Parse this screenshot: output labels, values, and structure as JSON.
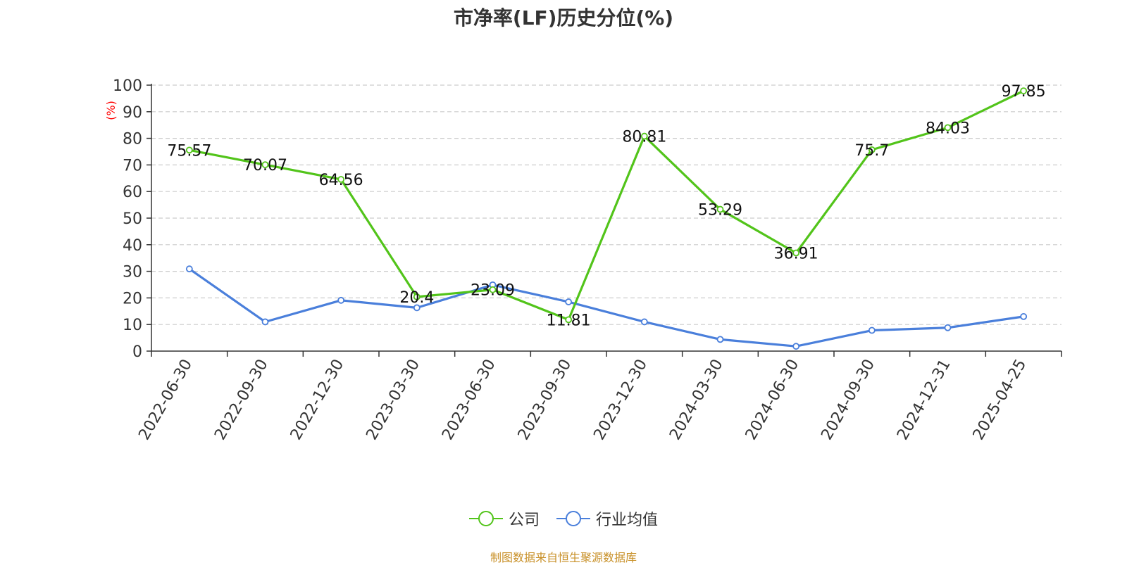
{
  "chart_data": {
    "type": "line",
    "title": "市净率(LF)历史分位(%)",
    "ylabel": "(%)",
    "xlabel": "",
    "ylim": [
      0,
      100
    ],
    "yticks": [
      0,
      10,
      20,
      30,
      40,
      50,
      60,
      70,
      80,
      90,
      100
    ],
    "grid": true,
    "legend_position": "bottom",
    "categories": [
      "2022-06-30",
      "2022-09-30",
      "2022-12-30",
      "2023-03-30",
      "2023-06-30",
      "2023-09-30",
      "2023-12-30",
      "2024-03-30",
      "2024-06-30",
      "2024-09-30",
      "2024-12-31",
      "2025-04-25"
    ],
    "series": [
      {
        "name": "公司",
        "color": "#52c41a",
        "values": [
          75.57,
          70.07,
          64.56,
          20.4,
          23.09,
          11.81,
          80.81,
          53.29,
          36.91,
          75.7,
          84.03,
          97.85
        ],
        "labels": [
          "75.57",
          "70.07",
          "64.56",
          "20.4",
          "23.09",
          "11.81",
          "80.81",
          "53.29",
          "36.91",
          "75.7",
          "84.03",
          "97.85"
        ]
      },
      {
        "name": "行业均值",
        "color": "#4a7fdb",
        "values": [
          30.9,
          11.0,
          19.1,
          16.3,
          24.9,
          18.5,
          11.0,
          4.4,
          1.8,
          7.8,
          8.8,
          13.0
        ]
      }
    ]
  },
  "source_note": "制图数据来自恒生聚源数据库"
}
